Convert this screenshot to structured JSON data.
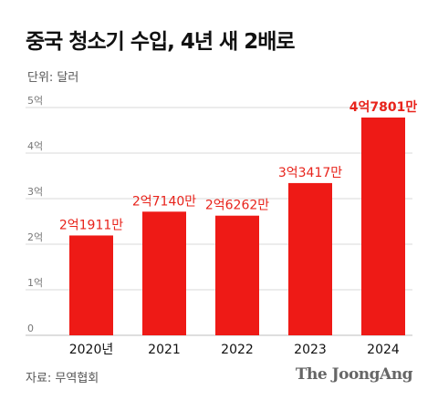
{
  "title": "중국 청소기 수입, 4년 새 2배로",
  "unit_label": "단위: 달러",
  "source_label": "자료: 무역협회",
  "brand": "The JoongAng",
  "colors": {
    "bar": "#ee1a16",
    "label": "#e8231b",
    "grid": "#d9d9d9"
  },
  "chart_data": {
    "type": "bar",
    "categories": [
      "2020년",
      "2021",
      "2022",
      "2023",
      "2024"
    ],
    "values": [
      219110000,
      271400000,
      262620000,
      334170000,
      478010000
    ],
    "value_labels": [
      "2억1911만",
      "2억7140만",
      "2억6262만",
      "3억3417만",
      "4억7801만"
    ],
    "yticks": [
      {
        "value": 0,
        "label": "0"
      },
      {
        "value": 100000000,
        "label": "1억"
      },
      {
        "value": 200000000,
        "label": "2억"
      },
      {
        "value": 300000000,
        "label": "3억"
      },
      {
        "value": 400000000,
        "label": "4억"
      },
      {
        "value": 500000000,
        "label": "5억"
      }
    ],
    "ylim": [
      0,
      500000000
    ],
    "grid": true
  }
}
